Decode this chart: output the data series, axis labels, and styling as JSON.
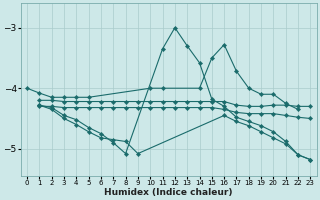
{
  "xlabel": "Humidex (Indice chaleur)",
  "background_color": "#cde8e8",
  "grid_color": "#aacccc",
  "line_color": "#1a6b6b",
  "xlim": [
    -0.5,
    23.5
  ],
  "ylim": [
    -5.45,
    -2.6
  ],
  "yticks": [
    -5,
    -4,
    -3
  ],
  "xticks": [
    0,
    1,
    2,
    3,
    4,
    5,
    6,
    7,
    8,
    9,
    10,
    11,
    12,
    13,
    14,
    15,
    16,
    17,
    18,
    19,
    20,
    21,
    22,
    23
  ],
  "lines": [
    {
      "x": [
        0,
        1,
        2,
        3,
        4,
        5,
        10,
        11,
        14,
        15,
        16,
        17,
        18,
        19,
        20,
        21,
        22
      ],
      "y": [
        -4.0,
        -4.08,
        -4.15,
        -4.15,
        -4.15,
        -4.15,
        -4.0,
        -4.0,
        -4.0,
        -3.5,
        -3.28,
        -3.72,
        -4.0,
        -4.1,
        -4.1,
        -4.25,
        -4.35
      ]
    },
    {
      "x": [
        1,
        2,
        3,
        4,
        5,
        6,
        7,
        8,
        9,
        10,
        11,
        12,
        13,
        14,
        15,
        16,
        17,
        18,
        19,
        20,
        21,
        22,
        23
      ],
      "y": [
        -4.2,
        -4.2,
        -4.22,
        -4.22,
        -4.22,
        -4.22,
        -4.22,
        -4.22,
        -4.22,
        -4.22,
        -4.22,
        -4.22,
        -4.22,
        -4.22,
        -4.22,
        -4.22,
        -4.28,
        -4.3,
        -4.3,
        -4.28,
        -4.28,
        -4.3,
        -4.3
      ]
    },
    {
      "x": [
        1,
        2,
        3,
        4,
        5,
        6,
        7,
        8,
        9,
        10,
        11,
        12,
        13,
        14,
        15,
        16,
        17,
        18,
        19,
        20,
        21,
        22,
        23
      ],
      "y": [
        -4.3,
        -4.3,
        -4.32,
        -4.32,
        -4.32,
        -4.32,
        -4.32,
        -4.32,
        -4.32,
        -4.32,
        -4.32,
        -4.32,
        -4.32,
        -4.32,
        -4.32,
        -4.35,
        -4.4,
        -4.42,
        -4.42,
        -4.42,
        -4.45,
        -4.48,
        -4.5
      ]
    },
    {
      "x": [
        1,
        2,
        3,
        4,
        5,
        6,
        7,
        8,
        11,
        12,
        13,
        14,
        15,
        16,
        17,
        18,
        19,
        20,
        21,
        22,
        23
      ],
      "y": [
        -4.28,
        -4.32,
        -4.45,
        -4.52,
        -4.65,
        -4.75,
        -4.9,
        -5.08,
        -3.35,
        -3.0,
        -3.3,
        -3.58,
        -4.18,
        -4.3,
        -4.48,
        -4.55,
        -4.62,
        -4.72,
        -4.88,
        -5.1,
        -5.18
      ]
    },
    {
      "x": [
        1,
        2,
        3,
        4,
        5,
        6,
        7,
        8,
        9,
        16,
        17,
        18,
        19,
        20,
        21,
        22,
        23
      ],
      "y": [
        -4.28,
        -4.35,
        -4.5,
        -4.6,
        -4.72,
        -4.82,
        -4.85,
        -4.88,
        -5.08,
        -4.45,
        -4.55,
        -4.62,
        -4.72,
        -4.82,
        -4.92,
        -5.1,
        -5.18
      ]
    }
  ]
}
